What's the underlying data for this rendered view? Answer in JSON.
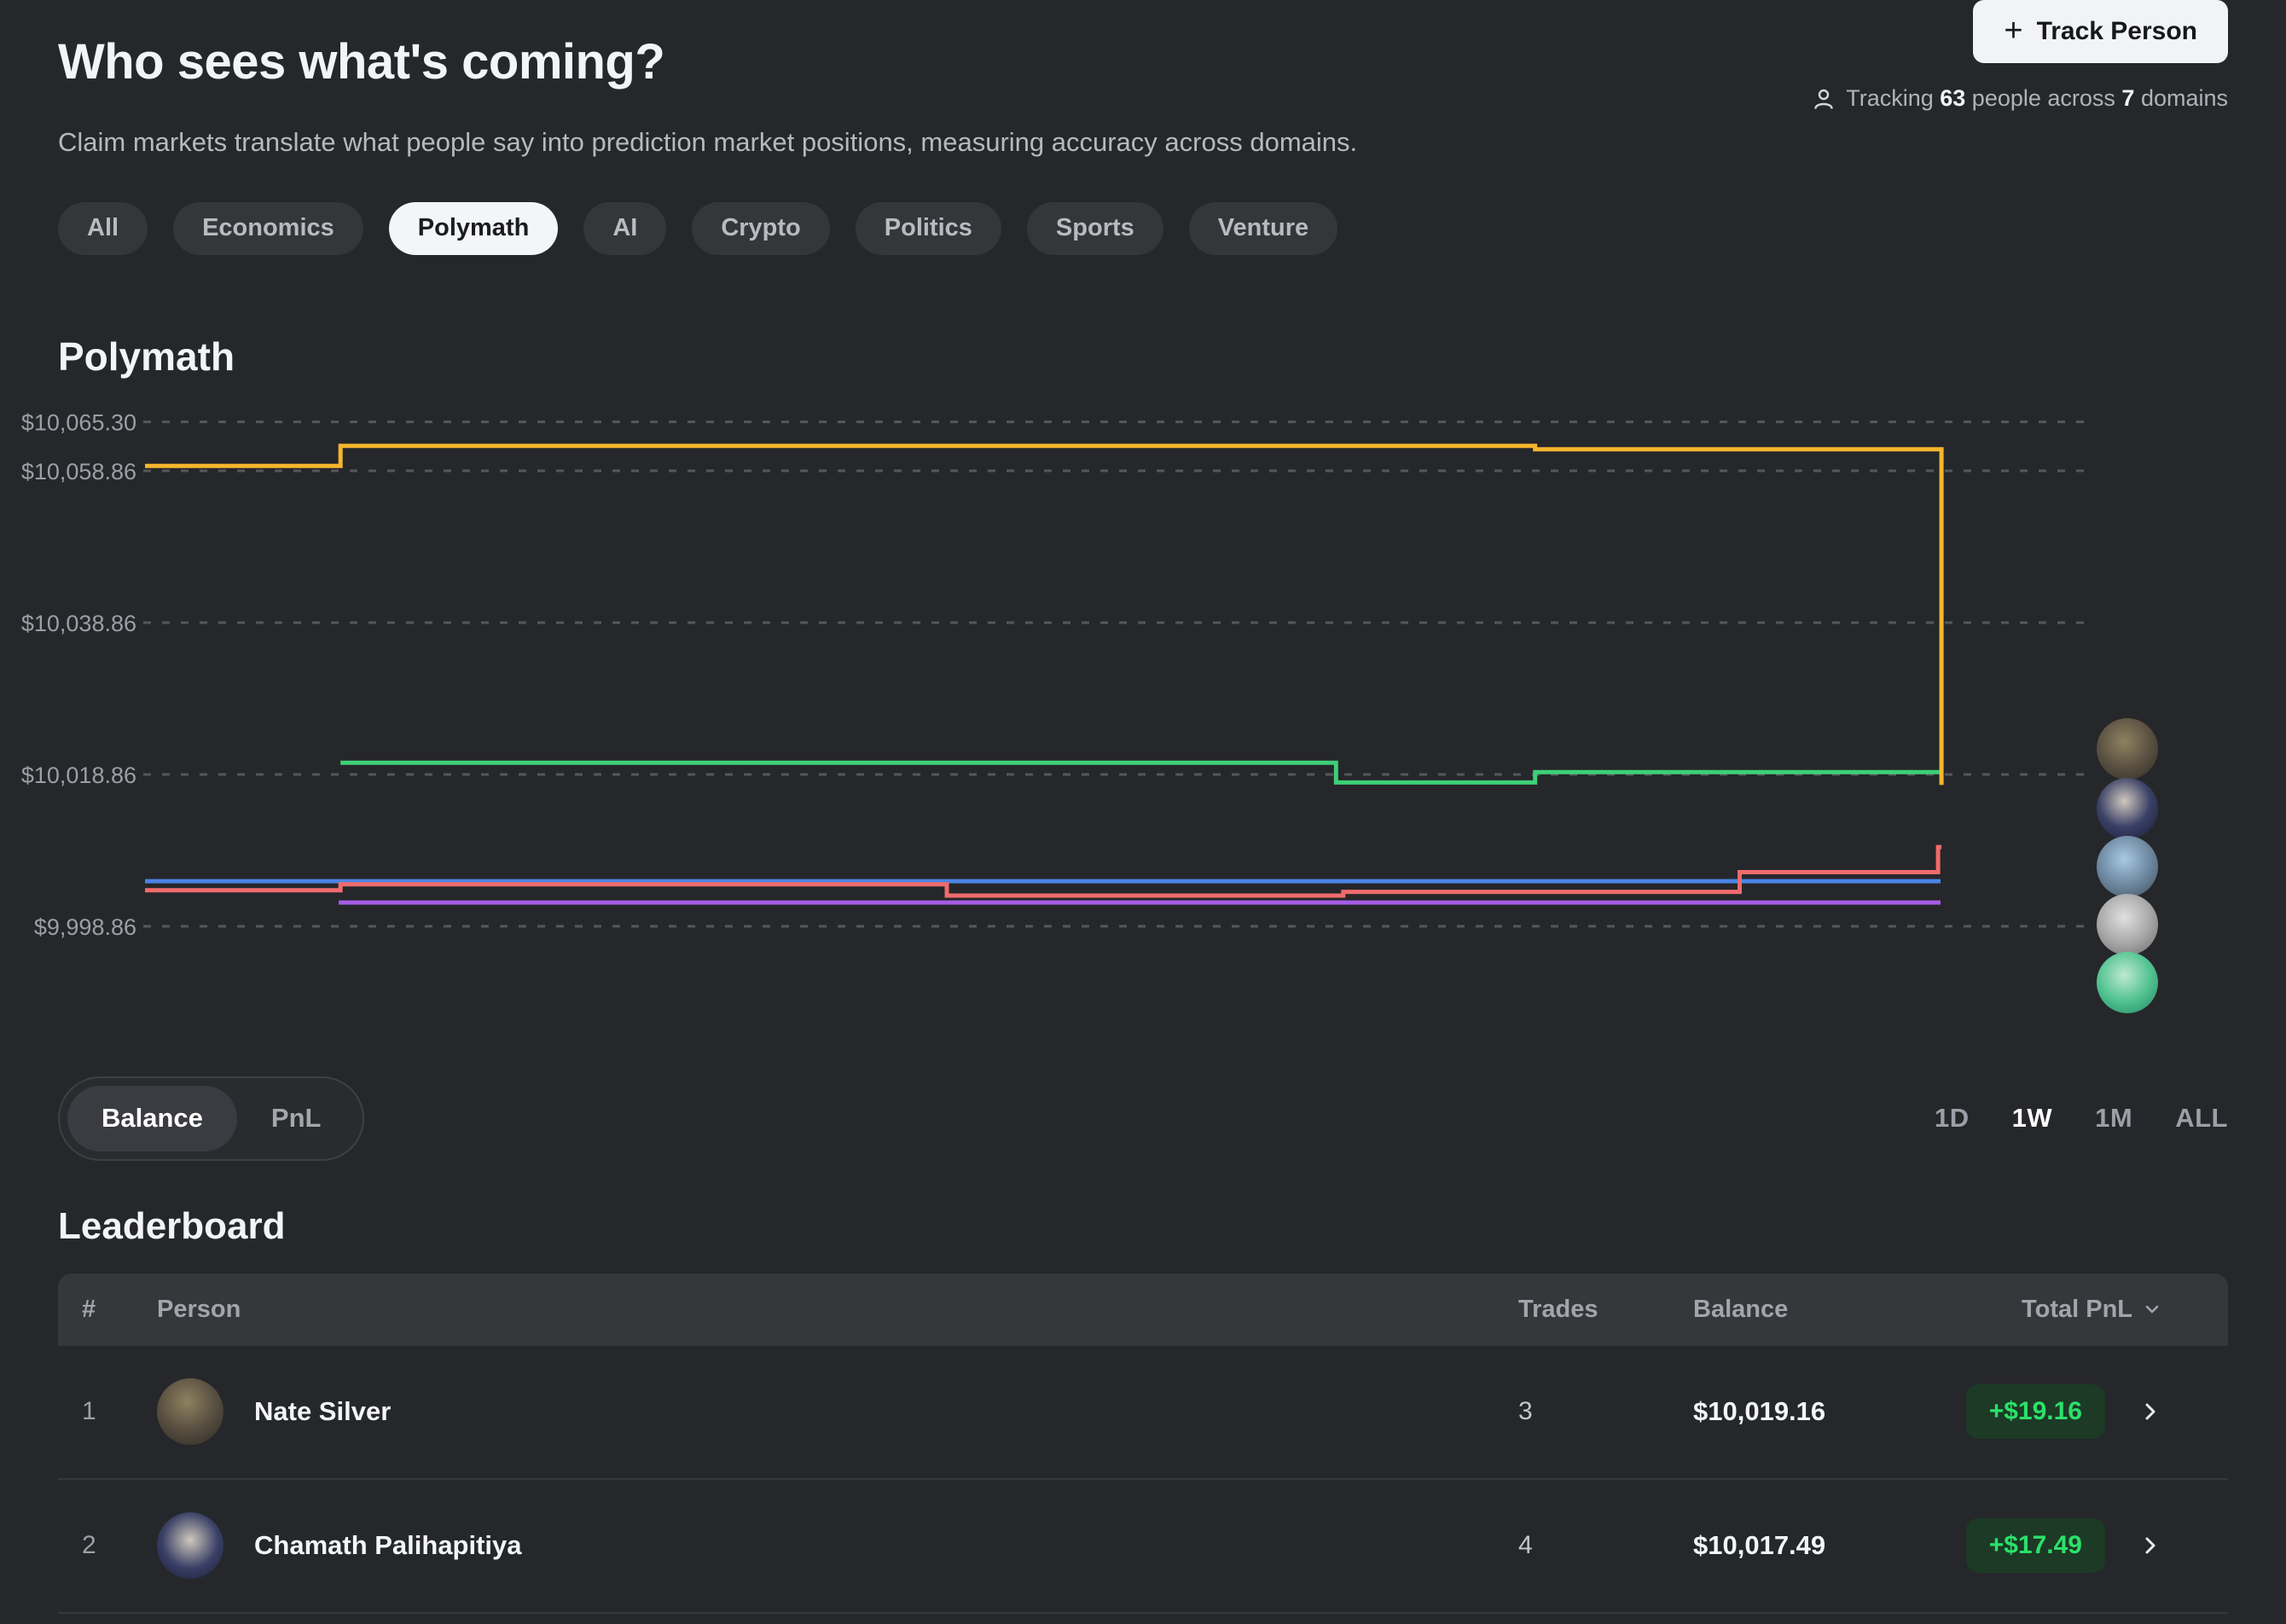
{
  "header": {
    "title": "Who sees what's coming?",
    "subtitle": "Claim markets translate what people say into prediction market positions, measuring accuracy across domains.",
    "track_plus": "+",
    "track_label": "Track Person",
    "tracking_p1": "Tracking ",
    "tracking_n1": "63",
    "tracking_p2": " people across ",
    "tracking_n2": "7",
    "tracking_p3": " domains"
  },
  "filters": [
    {
      "label": "All",
      "active": false
    },
    {
      "label": "Economics",
      "active": false
    },
    {
      "label": "Polymath",
      "active": true
    },
    {
      "label": "AI",
      "active": false
    },
    {
      "label": "Crypto",
      "active": false
    },
    {
      "label": "Politics",
      "active": false
    },
    {
      "label": "Sports",
      "active": false
    },
    {
      "label": "Venture",
      "active": false
    }
  ],
  "section": {
    "title": "Polymath"
  },
  "chart_data": {
    "type": "line",
    "title": "Polymath",
    "metric": "Balance",
    "time_range": "1W",
    "grid": "horizontal-dashed",
    "legend_position": "none",
    "ylim": [
      9995,
      10068
    ],
    "y_gridlines": [
      {
        "label": "$10,065.30",
        "value": 10065.3
      },
      {
        "label": "$10,058.86",
        "value": 10058.86
      },
      {
        "label": "$10,038.86",
        "value": 10038.86
      },
      {
        "label": "$10,018.86",
        "value": 10018.86
      },
      {
        "label": "$9,998.86",
        "value": 9998.86
      }
    ],
    "series": [
      {
        "name": "series-blue",
        "color": "#4b84e6",
        "points": [
          [
            0,
            10004.8
          ]
        ],
        "end": 0.992
      },
      {
        "name": "series-purple",
        "color": "#a55ce6",
        "points": [
          [
            0.107,
            10002.0
          ]
        ],
        "end": 0.992
      },
      {
        "name": "series-red",
        "color": "#ef6b6c",
        "points": [
          [
            0,
            10003.6
          ],
          [
            0.108,
            10004.4
          ],
          [
            0.443,
            10002.9
          ],
          [
            0.662,
            10003.4
          ],
          [
            0.881,
            10006.0
          ],
          [
            0.9906,
            10009.3
          ]
        ],
        "end": 0.9925
      },
      {
        "name": "series-green",
        "color": "#3ecf77",
        "points": [
          [
            0.108,
            10020.4
          ],
          [
            0.658,
            10017.8
          ],
          [
            0.768,
            10019.16
          ]
        ],
        "end": 0.9925
      },
      {
        "name": "series-yellow",
        "color": "#f5b62e",
        "points": [
          [
            0,
            10059.5
          ],
          [
            0.108,
            10062.15
          ],
          [
            0.768,
            10061.7
          ],
          [
            0.9925,
            10017.49
          ]
        ],
        "end": 0.9925
      }
    ],
    "avatars": [
      {
        "name": "avatar-1",
        "stops": [
          "#8f8260",
          "#5a5142",
          "#2a2822"
        ]
      },
      {
        "name": "avatar-2",
        "stops": [
          "#cfc8bd",
          "#3a4066",
          "#161b33"
        ]
      },
      {
        "name": "avatar-3",
        "stops": [
          "#a8c8e2",
          "#6d88a0",
          "#3f4a55"
        ]
      },
      {
        "name": "avatar-4",
        "stops": [
          "#e0e0e0",
          "#a8a8a8",
          "#636363"
        ]
      },
      {
        "name": "avatar-5",
        "stops": [
          "#bfe8d2",
          "#52c391",
          "#1d7f5f"
        ]
      }
    ]
  },
  "controls": {
    "metric_options": [
      "Balance",
      "PnL"
    ],
    "metric_selected": "Balance",
    "ranges": [
      "1D",
      "1W",
      "1M",
      "ALL"
    ],
    "range_selected": "1W"
  },
  "leaderboard": {
    "title": "Leaderboard",
    "columns": [
      "#",
      "Person",
      "Trades",
      "Balance",
      "Total PnL"
    ],
    "rows": [
      {
        "rank": "1",
        "name": "Nate Silver",
        "avatar": "av-nate",
        "trades": "3",
        "balance": "$10,019.16",
        "pnl": "+$19.16"
      },
      {
        "rank": "2",
        "name": "Chamath Palihapitiya",
        "avatar": "av-chamath",
        "trades": "4",
        "balance": "$10,017.49",
        "pnl": "+$17.49"
      }
    ],
    "pnl_positive_color": "#2ce06b",
    "pnl_badge_bg": "#1c3a25"
  }
}
